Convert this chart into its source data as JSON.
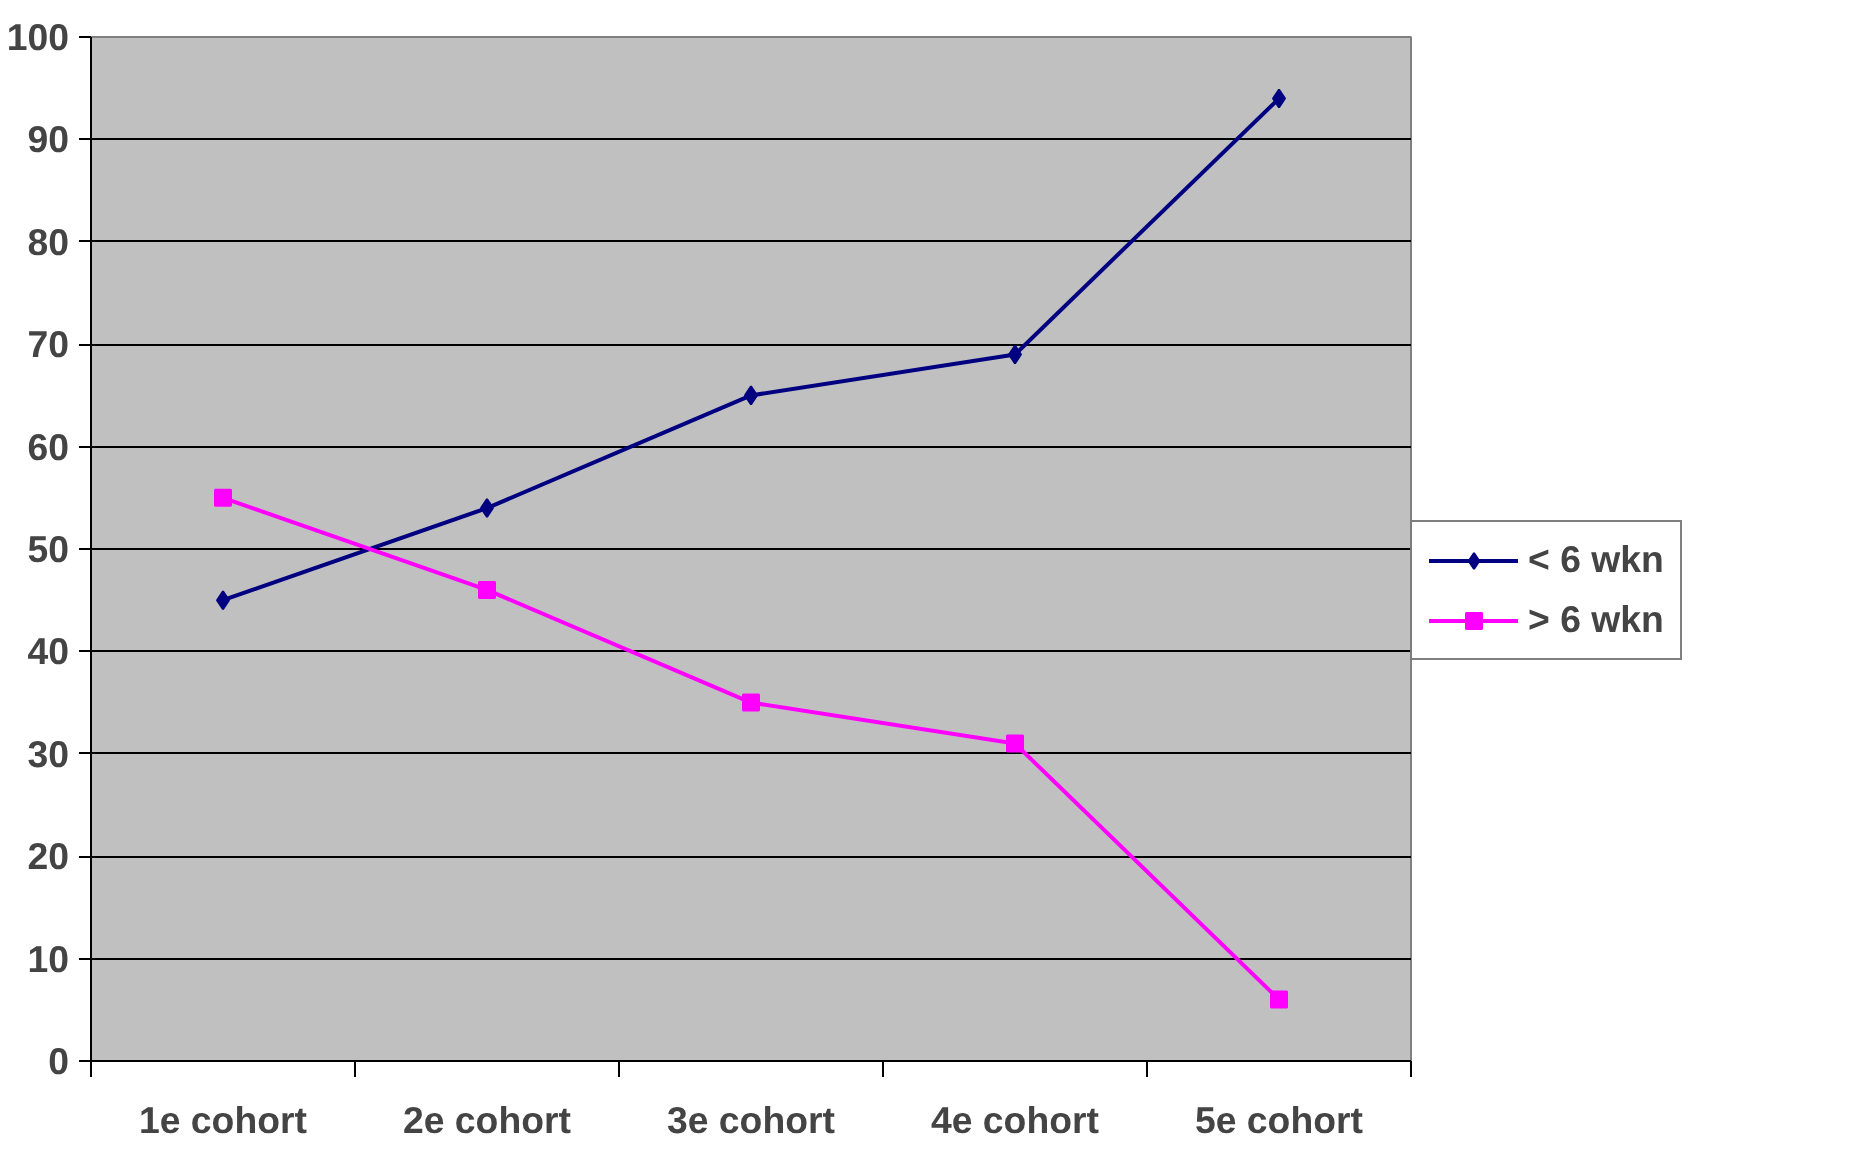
{
  "chart_data": {
    "type": "line",
    "categories": [
      "1e cohort",
      "2e cohort",
      "3e cohort",
      "4e cohort",
      "5e cohort"
    ],
    "series": [
      {
        "name": "< 6 wkn",
        "color": "#000080",
        "values": [
          45,
          54,
          65,
          69,
          94
        ],
        "marker": "diamond"
      },
      {
        "name": "> 6 wkn",
        "color": "#ff00ff",
        "values": [
          55,
          46,
          35,
          31,
          6
        ],
        "marker": "square"
      }
    ],
    "ylim": [
      0,
      100
    ],
    "yticks": [
      0,
      10,
      20,
      30,
      40,
      50,
      60,
      70,
      80,
      90,
      100
    ],
    "grid": "y",
    "legend": "right"
  }
}
